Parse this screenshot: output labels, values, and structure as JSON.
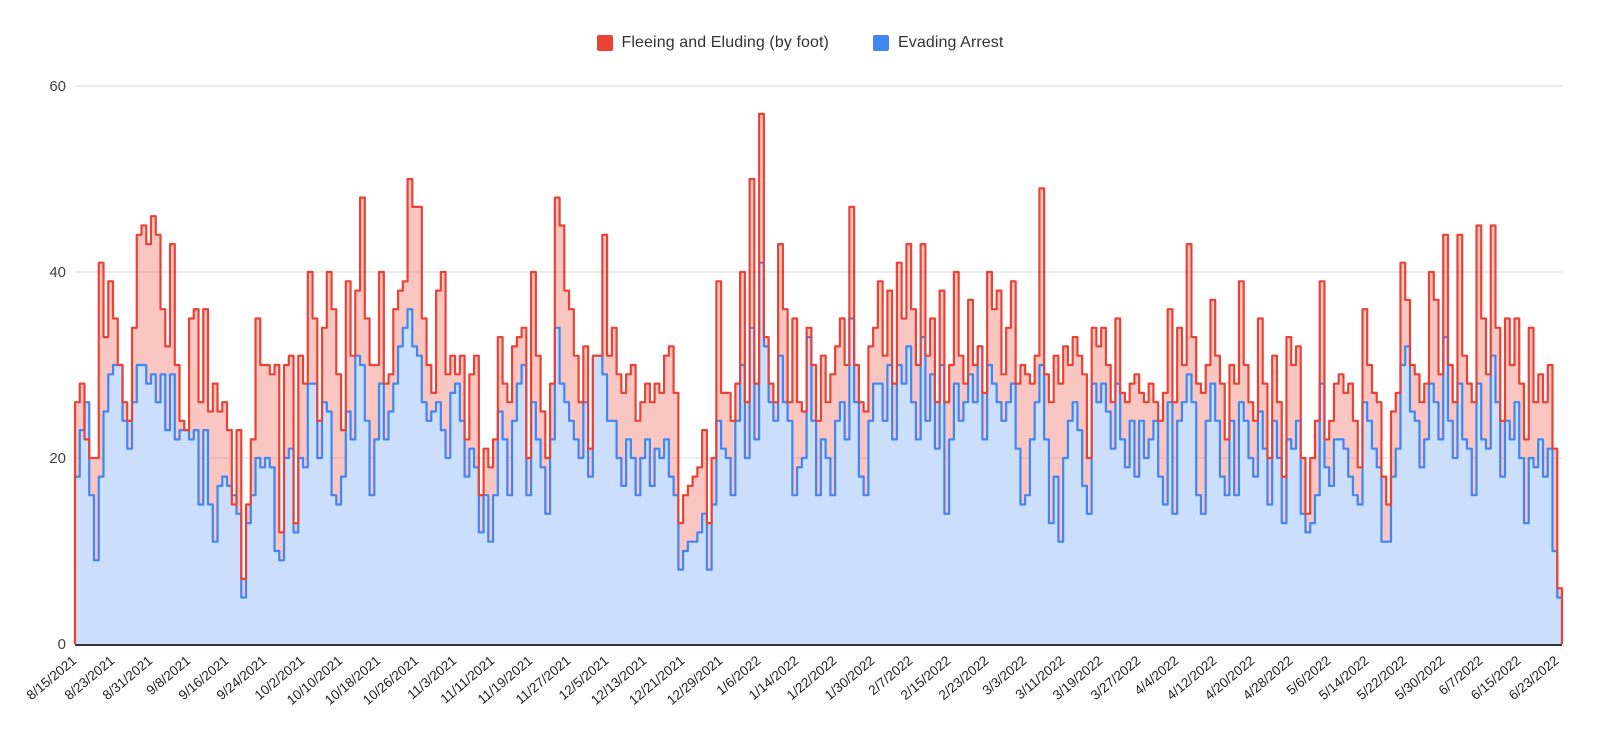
{
  "legend": {
    "items": [
      {
        "label": "Fleeing and Eluding (by foot)",
        "color": "#EA4335"
      },
      {
        "label": "Evading Arrest",
        "color": "#4285F4"
      }
    ]
  },
  "chart_data": {
    "type": "area",
    "stepped": true,
    "title": "",
    "xlabel": "",
    "ylabel": "",
    "grid": "horizontal",
    "legend_position": "top-center",
    "ylim": [
      0,
      60
    ],
    "y_ticks": [
      0,
      20,
      40,
      60
    ],
    "x_range": {
      "start": "8/15/2021",
      "end": "6/23/2022",
      "interval": "daily",
      "points": 313,
      "tick_every_days": 8
    },
    "x_tick_labels": [
      "8/15/2021",
      "8/23/2021",
      "8/31/2021",
      "9/8/2021",
      "9/16/2021",
      "9/24/2021",
      "10/2/2021",
      "10/10/2021",
      "10/18/2021",
      "10/26/2021",
      "11/3/2021",
      "11/11/2021",
      "11/19/2021",
      "11/27/2021",
      "12/5/2021",
      "12/13/2021",
      "12/21/2021",
      "12/29/2021",
      "1/6/2022",
      "1/14/2022",
      "1/22/2022",
      "1/30/2022",
      "2/7/2022",
      "2/15/2022",
      "2/23/2022",
      "3/3/2022",
      "3/11/2022",
      "3/19/2022",
      "3/27/2022",
      "4/4/2022",
      "4/12/2022",
      "4/20/2022",
      "4/28/2022",
      "5/6/2022",
      "5/14/2022",
      "5/22/2022",
      "5/30/2022",
      "6/7/2022",
      "6/15/2022",
      "6/23/2022"
    ],
    "axis_colors": {
      "gridline": "#dadada",
      "baseline": "#333333",
      "tick_text": "#222222",
      "value_text": "#444444"
    },
    "series": [
      {
        "name": "Fleeing and Eluding (by foot)",
        "stroke": "#EA4335",
        "fill": "rgba(234,67,53,0.30)",
        "values": [
          26,
          28,
          22,
          20,
          20,
          41,
          33,
          39,
          35,
          30,
          26,
          24,
          34,
          44,
          45,
          43,
          46,
          44,
          36,
          32,
          43,
          30,
          24,
          23,
          35,
          36,
          26,
          36,
          25,
          28,
          25,
          26,
          23,
          15,
          23,
          7,
          15,
          22,
          35,
          30,
          30,
          29,
          30,
          12,
          30,
          31,
          13,
          31,
          28,
          40,
          35,
          24,
          34,
          40,
          36,
          29,
          23,
          39,
          31,
          38,
          48,
          35,
          30,
          30,
          40,
          28,
          29,
          36,
          38,
          39,
          50,
          47,
          47,
          35,
          30,
          27,
          38,
          40,
          29,
          31,
          29,
          31,
          22,
          29,
          31,
          16,
          21,
          19,
          22,
          33,
          28,
          26,
          32,
          33,
          34,
          20,
          40,
          31,
          25,
          20,
          28,
          48,
          45,
          38,
          36,
          31,
          26,
          32,
          21,
          31,
          31,
          44,
          31,
          34,
          29,
          27,
          29,
          30,
          24,
          26,
          28,
          26,
          28,
          27,
          31,
          32,
          27,
          13,
          16,
          17,
          18,
          19,
          23,
          13,
          20,
          39,
          27,
          27,
          24,
          28,
          40,
          26,
          50,
          28,
          57,
          33,
          28,
          26,
          43,
          36,
          26,
          35,
          26,
          25,
          34,
          30,
          24,
          31,
          26,
          29,
          32,
          35,
          30,
          47,
          30,
          26,
          25,
          32,
          34,
          39,
          31,
          38,
          28,
          41,
          35,
          43,
          36,
          30,
          43,
          31,
          35,
          26,
          38,
          26,
          30,
          40,
          31,
          28,
          37,
          30,
          32,
          27,
          40,
          36,
          38,
          29,
          34,
          39,
          28,
          30,
          29,
          28,
          31,
          49,
          29,
          26,
          31,
          28,
          32,
          30,
          33,
          31,
          29,
          20,
          34,
          32,
          34,
          30,
          26,
          35,
          27,
          26,
          28,
          29,
          27,
          26,
          28,
          26,
          24,
          27,
          36,
          26,
          34,
          30,
          43,
          33,
          28,
          27,
          30,
          37,
          31,
          28,
          22,
          30,
          28,
          39,
          30,
          26,
          24,
          35,
          28,
          20,
          31,
          26,
          18,
          33,
          30,
          32,
          20,
          14,
          20,
          24,
          39,
          22,
          24,
          28,
          29,
          27,
          28,
          24,
          19,
          36,
          30,
          27,
          26,
          18,
          15,
          25,
          27,
          41,
          37,
          30,
          29,
          26,
          28,
          40,
          37,
          29,
          44,
          30,
          26,
          44,
          31,
          28,
          26,
          45,
          35,
          29,
          45,
          34,
          24,
          35,
          30,
          35,
          28,
          22,
          34,
          26,
          29,
          26,
          30,
          21,
          6
        ]
      },
      {
        "name": "Evading Arrest",
        "stroke": "#4285F4",
        "fill": "#CBDEFB",
        "values": [
          18,
          23,
          26,
          16,
          9,
          18,
          25,
          29,
          30,
          30,
          24,
          21,
          26,
          30,
          30,
          28,
          29,
          26,
          29,
          23,
          29,
          22,
          23,
          23,
          22,
          23,
          15,
          23,
          15,
          11,
          17,
          18,
          17,
          16,
          14,
          5,
          13,
          16,
          20,
          19,
          20,
          19,
          10,
          9,
          20,
          21,
          12,
          20,
          19,
          28,
          28,
          20,
          26,
          25,
          16,
          15,
          18,
          25,
          22,
          31,
          30,
          24,
          16,
          22,
          28,
          22,
          25,
          28,
          32,
          34,
          36,
          32,
          31,
          26,
          24,
          25,
          26,
          23,
          20,
          27,
          28,
          24,
          18,
          21,
          19,
          12,
          16,
          11,
          16,
          25,
          22,
          16,
          24,
          28,
          30,
          16,
          26,
          22,
          19,
          14,
          22,
          34,
          28,
          26,
          24,
          22,
          20,
          26,
          18,
          31,
          31,
          29,
          24,
          24,
          20,
          17,
          22,
          20,
          16,
          20,
          22,
          17,
          21,
          20,
          22,
          18,
          16,
          8,
          10,
          11,
          11,
          12,
          14,
          8,
          15,
          24,
          21,
          20,
          16,
          24,
          30,
          20,
          34,
          22,
          41,
          32,
          26,
          24,
          31,
          26,
          24,
          16,
          19,
          20,
          33,
          24,
          16,
          22,
          20,
          16,
          24,
          26,
          22,
          35,
          26,
          18,
          16,
          24,
          28,
          28,
          24,
          30,
          22,
          30,
          28,
          32,
          26,
          22,
          33,
          24,
          29,
          21,
          30,
          14,
          22,
          28,
          24,
          26,
          29,
          26,
          32,
          22,
          30,
          28,
          26,
          24,
          26,
          28,
          21,
          15,
          16,
          22,
          26,
          30,
          22,
          13,
          18,
          11,
          20,
          24,
          26,
          23,
          17,
          14,
          28,
          26,
          28,
          25,
          21,
          28,
          22,
          19,
          24,
          18,
          24,
          20,
          22,
          24,
          18,
          15,
          26,
          14,
          24,
          26,
          29,
          26,
          16,
          14,
          24,
          28,
          24,
          18,
          16,
          24,
          16,
          26,
          24,
          20,
          18,
          25,
          21,
          15,
          24,
          20,
          13,
          22,
          21,
          24,
          14,
          12,
          13,
          16,
          28,
          19,
          17,
          22,
          22,
          21,
          18,
          16,
          15,
          26,
          24,
          21,
          19,
          11,
          11,
          18,
          21,
          30,
          32,
          25,
          24,
          19,
          22,
          28,
          26,
          22,
          33,
          24,
          20,
          28,
          22,
          21,
          16,
          28,
          22,
          21,
          31,
          26,
          18,
          24,
          22,
          26,
          20,
          13,
          20,
          19,
          22,
          18,
          21,
          10,
          5
        ]
      }
    ]
  }
}
